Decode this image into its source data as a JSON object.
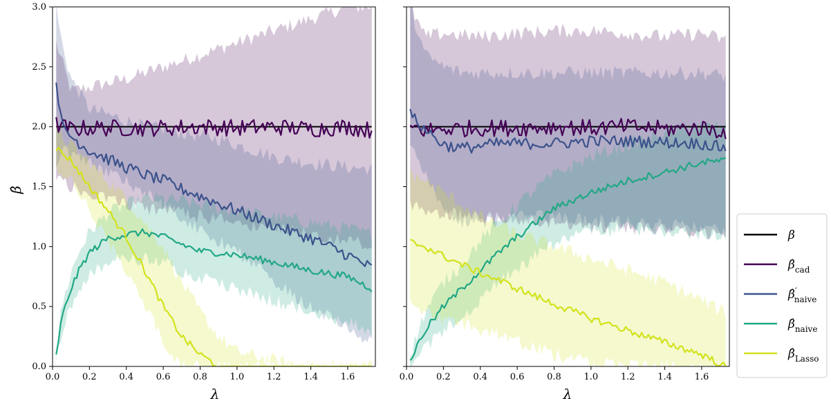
{
  "chart_data": {
    "type": "line",
    "ylabel": "β̂",
    "xlabel": "λ",
    "xlim": [
      0.0,
      1.75
    ],
    "ylim": [
      0.0,
      3.0
    ],
    "xticks": [
      "0.0",
      "0.2",
      "0.4",
      "0.6",
      "0.8",
      "1.0",
      "1.2",
      "1.4",
      "1.6"
    ],
    "yticks": [
      "0.0",
      "0.5",
      "1.0",
      "1.5",
      "2.0",
      "2.5",
      "3.0"
    ],
    "legend_placement": "right",
    "legend": [
      {
        "key": "beta",
        "label": "β",
        "sub": "",
        "prime": ""
      },
      {
        "key": "cad",
        "label": "β̂",
        "sub": "cad",
        "prime": ""
      },
      {
        "key": "naive_prime",
        "label": "β̂",
        "sub": "naive",
        "prime": "′"
      },
      {
        "key": "naive",
        "label": "β̂",
        "sub": "naive",
        "prime": ""
      },
      {
        "key": "lasso",
        "label": "β̂",
        "sub": "Lasso",
        "prime": ""
      }
    ],
    "colors": {
      "beta": "#000000",
      "cad": "#440154",
      "naive_prime": "#3b528b",
      "naive": "#21a785",
      "lasso": "#d2e21b"
    },
    "panels": [
      {
        "name": "left",
        "beta": 2.0,
        "series": {
          "cad": {
            "x": [
              0.02,
              0.1,
              0.2,
              0.4,
              0.6,
              0.8,
              1.0,
              1.2,
              1.4,
              1.6,
              1.73
            ],
            "mean": [
              2.02,
              1.98,
              1.99,
              1.99,
              1.99,
              2.0,
              1.99,
              2.0,
              1.98,
              2.0,
              1.97
            ],
            "lo": [
              1.6,
              1.5,
              1.45,
              1.35,
              1.3,
              1.25,
              1.2,
              1.15,
              1.1,
              1.05,
              1.0
            ],
            "hi": [
              2.7,
              2.3,
              2.33,
              2.4,
              2.5,
              2.6,
              2.7,
              2.8,
              2.9,
              3.0,
              3.0
            ]
          },
          "naive_prime": {
            "x": [
              0.02,
              0.05,
              0.1,
              0.2,
              0.3,
              0.4,
              0.5,
              0.6,
              0.7,
              0.8,
              0.9,
              1.0,
              1.1,
              1.2,
              1.3,
              1.4,
              1.5,
              1.6,
              1.73
            ],
            "mean": [
              2.4,
              2.0,
              1.92,
              1.8,
              1.73,
              1.66,
              1.6,
              1.55,
              1.48,
              1.42,
              1.36,
              1.3,
              1.24,
              1.18,
              1.12,
              1.07,
              1.0,
              0.93,
              0.82
            ],
            "lo": [
              1.7,
              1.8,
              1.76,
              1.7,
              1.62,
              1.55,
              1.45,
              1.35,
              1.25,
              1.15,
              1.05,
              0.95,
              0.85,
              0.7,
              0.6,
              0.5,
              0.4,
              0.3,
              0.2
            ],
            "hi": [
              3.0,
              2.7,
              2.4,
              2.15,
              2.1,
              2.05,
              2.0,
              1.98,
              1.95,
              1.92,
              1.9,
              1.85,
              1.8,
              1.75,
              1.72,
              1.7,
              1.68,
              1.66,
              1.65
            ]
          },
          "naive": {
            "x": [
              0.02,
              0.05,
              0.1,
              0.15,
              0.2,
              0.3,
              0.4,
              0.5,
              0.6,
              0.7,
              0.8,
              0.9,
              1.0,
              1.2,
              1.4,
              1.6,
              1.73
            ],
            "mean": [
              0.1,
              0.4,
              0.65,
              0.82,
              0.95,
              1.07,
              1.1,
              1.12,
              1.08,
              1.02,
              0.96,
              0.95,
              0.93,
              0.87,
              0.8,
              0.75,
              0.65
            ],
            "lo": [
              0.08,
              0.3,
              0.5,
              0.65,
              0.75,
              0.88,
              0.9,
              0.9,
              0.88,
              0.8,
              0.75,
              0.7,
              0.65,
              0.55,
              0.45,
              0.38,
              0.3
            ],
            "hi": [
              0.12,
              0.5,
              0.78,
              0.98,
              1.12,
              1.28,
              1.35,
              1.4,
              1.4,
              1.38,
              1.35,
              1.32,
              1.3,
              1.25,
              1.2,
              1.15,
              1.1
            ]
          },
          "lasso": {
            "x": [
              0.02,
              0.1,
              0.2,
              0.3,
              0.4,
              0.5,
              0.6,
              0.7,
              0.8,
              0.9,
              1.0,
              1.2,
              1.4,
              1.6,
              1.73
            ],
            "mean": [
              1.82,
              1.72,
              1.5,
              1.3,
              1.08,
              0.8,
              0.5,
              0.25,
              0.1,
              0.0,
              0.0,
              0.0,
              0.0,
              0.0,
              0.0
            ],
            "lo": [
              1.65,
              1.55,
              1.3,
              1.05,
              0.8,
              0.5,
              0.2,
              0.0,
              0.0,
              0.0,
              0.0,
              0.0,
              0.0,
              0.0,
              0.0
            ],
            "hi": [
              1.95,
              1.85,
              1.7,
              1.55,
              1.4,
              1.2,
              1.0,
              0.7,
              0.45,
              0.25,
              0.12,
              0.05,
              0.0,
              0.0,
              0.0
            ]
          }
        }
      },
      {
        "name": "right",
        "beta": 2.0,
        "series": {
          "cad": {
            "x": [
              0.02,
              0.1,
              0.2,
              0.4,
              0.6,
              0.8,
              1.0,
              1.2,
              1.4,
              1.6,
              1.73
            ],
            "mean": [
              2.0,
              1.97,
              1.98,
              1.99,
              1.99,
              2.0,
              1.99,
              2.0,
              1.98,
              1.99,
              1.96
            ],
            "lo": [
              1.35,
              1.3,
              1.28,
              1.25,
              1.22,
              1.2,
              1.18,
              1.16,
              1.14,
              1.12,
              1.1
            ],
            "hi": [
              3.0,
              2.75,
              2.78,
              2.75,
              2.78,
              2.8,
              2.8,
              2.78,
              2.75,
              2.78,
              2.72
            ]
          },
          "naive_prime": {
            "x": [
              0.02,
              0.1,
              0.2,
              0.3,
              0.4,
              0.5,
              0.6,
              0.8,
              1.0,
              1.2,
              1.4,
              1.6,
              1.73
            ],
            "mean": [
              2.1,
              1.98,
              1.85,
              1.82,
              1.84,
              1.86,
              1.86,
              1.86,
              1.88,
              1.88,
              1.87,
              1.86,
              1.82
            ],
            "lo": [
              1.9,
              1.6,
              1.3,
              1.2,
              1.2,
              1.22,
              1.25,
              1.25,
              1.22,
              1.2,
              1.18,
              1.15,
              1.12
            ],
            "hi": [
              3.0,
              2.6,
              2.5,
              2.45,
              2.45,
              2.45,
              2.45,
              2.45,
              2.45,
              2.45,
              2.45,
              2.45,
              2.42
            ]
          },
          "naive": {
            "x": [
              0.02,
              0.1,
              0.2,
              0.3,
              0.4,
              0.5,
              0.6,
              0.7,
              0.8,
              1.0,
              1.2,
              1.4,
              1.6,
              1.73
            ],
            "mean": [
              0.05,
              0.3,
              0.5,
              0.65,
              0.8,
              0.95,
              1.08,
              1.2,
              1.32,
              1.45,
              1.55,
              1.62,
              1.7,
              1.72
            ],
            "lo": [
              0.0,
              0.15,
              0.3,
              0.42,
              0.55,
              0.7,
              0.82,
              0.92,
              1.02,
              1.12,
              1.15,
              1.12,
              1.1,
              1.08
            ],
            "hi": [
              0.1,
              0.45,
              0.7,
              0.85,
              1.05,
              1.2,
              1.35,
              1.48,
              1.6,
              1.75,
              1.85,
              1.95,
              2.0,
              2.0
            ]
          },
          "lasso": {
            "x": [
              0.02,
              0.1,
              0.2,
              0.3,
              0.4,
              0.5,
              0.6,
              0.8,
              1.0,
              1.2,
              1.4,
              1.6,
              1.73
            ],
            "mean": [
              1.04,
              1.0,
              0.92,
              0.85,
              0.78,
              0.72,
              0.65,
              0.52,
              0.4,
              0.3,
              0.2,
              0.1,
              0.0
            ],
            "lo": [
              0.5,
              0.45,
              0.4,
              0.35,
              0.3,
              0.25,
              0.2,
              0.1,
              0.02,
              0.0,
              0.0,
              0.0,
              0.0
            ],
            "hi": [
              1.6,
              1.55,
              1.45,
              1.35,
              1.25,
              1.18,
              1.1,
              1.0,
              0.9,
              0.8,
              0.7,
              0.55,
              0.45
            ]
          }
        }
      }
    ]
  }
}
